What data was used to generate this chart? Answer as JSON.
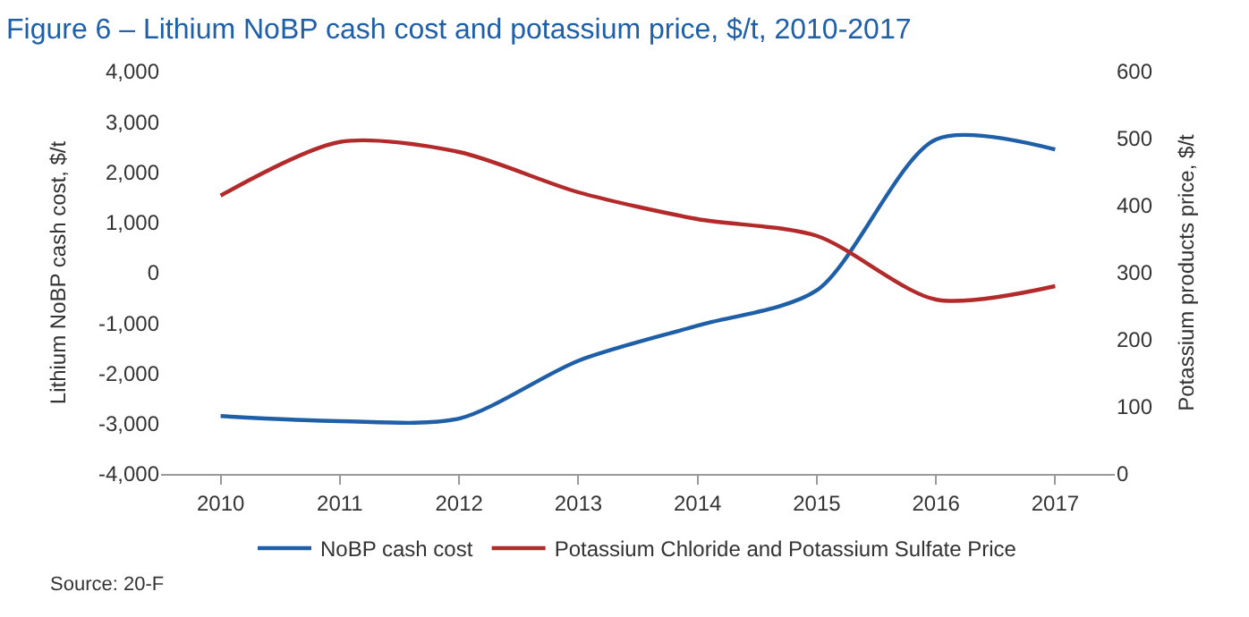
{
  "chart_data": {
    "type": "line",
    "title": "Figure 6 – Lithium NoBP cash cost and potassium price, $/t, 2010-2017",
    "ylabel": "Lithium NoBP cash cost, $/t",
    "y2label": "Potassium products price, $/t",
    "x": [
      2010,
      2011,
      2012,
      2013,
      2014,
      2015,
      2016,
      2017
    ],
    "series": [
      {
        "name": "NoBP cash cost",
        "color": "#1f5fa8",
        "values": [
          -2850,
          -2950,
          -2900,
          -1750,
          -1050,
          -350,
          2650,
          2450
        ]
      },
      {
        "name": "Potassium Chloride and Potassium Sulfate Price",
        "color": "#b22a2a",
        "axis": "y2",
        "values": [
          415,
          495,
          480,
          420,
          380,
          355,
          260,
          280
        ]
      }
    ],
    "xlim": [
      2009.5,
      2017.5
    ],
    "xticks": [
      2010,
      2011,
      2012,
      2013,
      2014,
      2015,
      2016,
      2017
    ],
    "ylim": [
      -4000,
      4000
    ],
    "yticks": [
      {
        "value": -4000,
        "label": "-4,000"
      },
      {
        "value": -3000,
        "label": "-3,000"
      },
      {
        "value": -2000,
        "label": "-2,000"
      },
      {
        "value": -1000,
        "label": "-1,000"
      },
      0,
      {
        "value": 1000,
        "label": "1,000"
      },
      {
        "value": 2000,
        "label": "2,000"
      },
      {
        "value": 3000,
        "label": "3,000"
      },
      {
        "value": 4000,
        "label": "4,000"
      }
    ],
    "y2lim": [
      0,
      600
    ],
    "y2ticks": [
      0,
      100,
      200,
      300,
      400,
      500,
      600
    ],
    "legend": "bottom",
    "marker": "none",
    "line_style": "solid",
    "annotations": [
      "Source: 20-F"
    ]
  }
}
